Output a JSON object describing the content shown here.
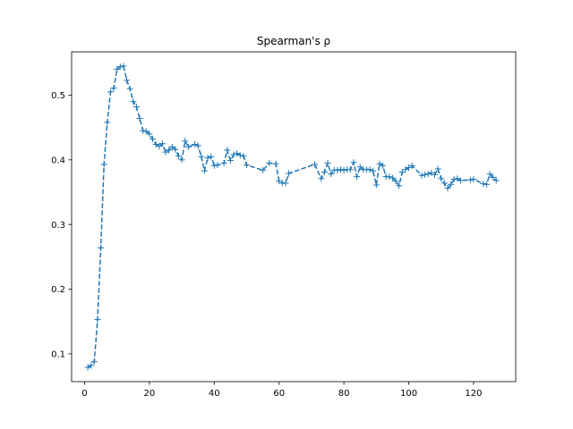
{
  "chart_data": {
    "type": "line",
    "title": "Spearman's ρ",
    "xlabel": "",
    "ylabel": "",
    "xlim": [
      -4,
      133
    ],
    "ylim": [
      0.057,
      0.567
    ],
    "x_ticks": [
      0,
      20,
      40,
      60,
      80,
      100,
      120
    ],
    "y_ticks": [
      0.1,
      0.2,
      0.3,
      0.4,
      0.5
    ],
    "x_tick_labels": [
      "0",
      "20",
      "40",
      "60",
      "80",
      "100",
      "120"
    ],
    "y_tick_labels": [
      "0.1",
      "0.2",
      "0.3",
      "0.4",
      "0.5"
    ],
    "grid": false,
    "legend": "none",
    "line_style": "dashed",
    "marker": "+",
    "color": "#1f77b4",
    "series": [
      {
        "x": [
          1,
          2,
          3,
          4,
          5,
          6,
          7,
          8,
          9,
          10,
          11,
          12,
          13,
          14,
          15,
          16,
          17,
          18,
          19,
          20,
          21,
          22,
          23,
          24,
          25,
          26,
          27,
          28,
          29,
          30,
          31,
          32,
          34,
          35,
          36,
          37,
          38,
          39,
          40,
          41,
          43,
          44,
          45,
          46,
          47,
          48,
          49,
          50,
          55,
          57,
          59,
          60,
          61,
          62,
          63,
          71,
          73,
          74,
          75,
          76,
          77,
          78,
          79,
          80,
          81,
          82,
          83,
          84,
          85,
          86,
          87,
          88,
          89,
          90,
          91,
          92,
          93,
          94,
          95,
          96,
          97,
          98,
          99,
          100,
          101,
          104,
          105,
          106,
          107,
          108,
          109,
          110,
          111,
          112,
          113,
          114,
          115,
          116,
          119,
          120,
          123,
          124,
          125,
          126,
          127
        ],
        "y": [
          0.079,
          0.082,
          0.088,
          0.153,
          0.264,
          0.393,
          0.458,
          0.505,
          0.511,
          0.54,
          0.544,
          0.545,
          0.523,
          0.51,
          0.49,
          0.482,
          0.464,
          0.445,
          0.444,
          0.44,
          0.432,
          0.424,
          0.421,
          0.425,
          0.412,
          0.415,
          0.42,
          0.416,
          0.406,
          0.4,
          0.429,
          0.42,
          0.424,
          0.422,
          0.405,
          0.383,
          0.403,
          0.405,
          0.391,
          0.392,
          0.395,
          0.415,
          0.399,
          0.408,
          0.41,
          0.407,
          0.406,
          0.392,
          0.384,
          0.395,
          0.394,
          0.367,
          0.364,
          0.364,
          0.379,
          0.393,
          0.371,
          0.381,
          0.395,
          0.378,
          0.384,
          0.384,
          0.385,
          0.384,
          0.385,
          0.385,
          0.396,
          0.374,
          0.389,
          0.385,
          0.385,
          0.385,
          0.383,
          0.361,
          0.394,
          0.391,
          0.374,
          0.374,
          0.372,
          0.367,
          0.36,
          0.381,
          0.385,
          0.388,
          0.391,
          0.376,
          0.377,
          0.378,
          0.38,
          0.377,
          0.386,
          0.371,
          0.364,
          0.356,
          0.362,
          0.37,
          0.371,
          0.368,
          0.369,
          0.37,
          0.363,
          0.362,
          0.378,
          0.373,
          0.368
        ]
      }
    ]
  }
}
